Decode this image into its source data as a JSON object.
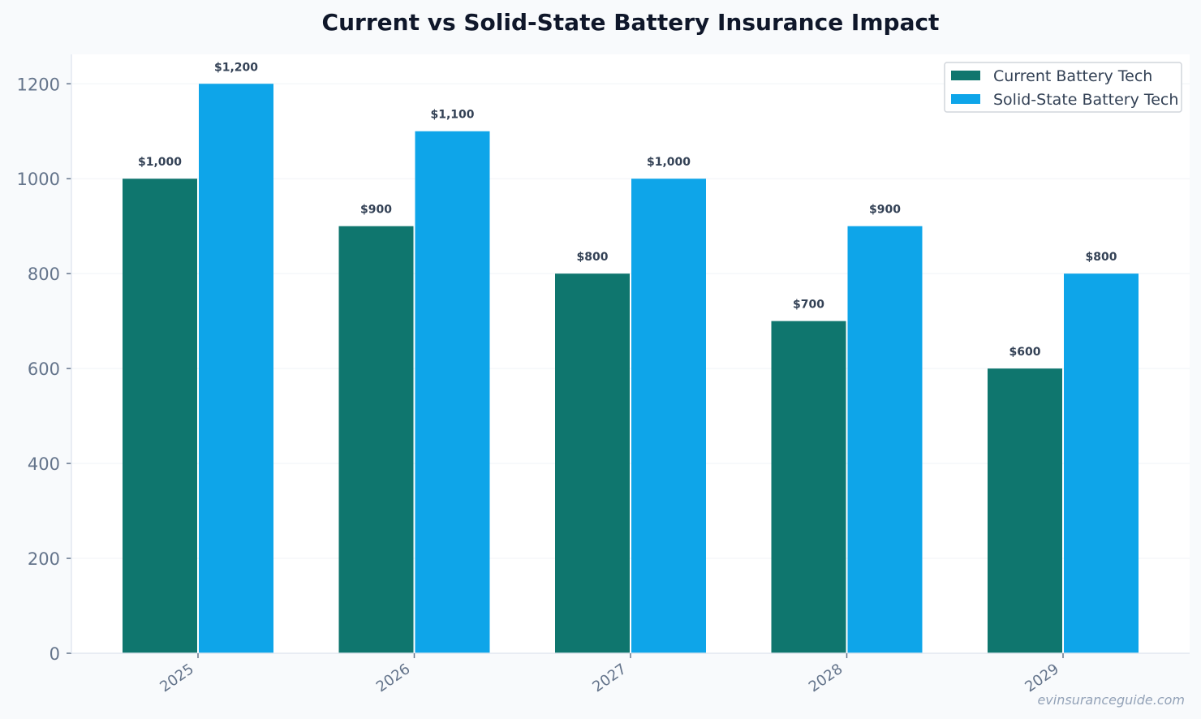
{
  "chart_data": {
    "type": "bar",
    "title": "Current vs Solid-State Battery Insurance Impact",
    "xlabel": "",
    "ylabel": "",
    "categories": [
      "2025",
      "2026",
      "2027",
      "2028",
      "2029"
    ],
    "series": [
      {
        "name": "Current Battery Tech",
        "color": "#0f766e",
        "values": [
          1000,
          900,
          800,
          700,
          600
        ],
        "labels": [
          "$1,000",
          "$900",
          "$800",
          "$700",
          "$600"
        ]
      },
      {
        "name": "Solid-State Battery Tech",
        "color": "#0ea5e9",
        "values": [
          1200,
          1100,
          1000,
          900,
          800
        ],
        "labels": [
          "$1,200",
          "$1,100",
          "$1,000",
          "$900",
          "$800"
        ]
      }
    ],
    "ylim": [
      0,
      1262
    ],
    "yticks": [
      0,
      200,
      400,
      600,
      800,
      1000,
      1200
    ],
    "grid": true,
    "legend": "top-right",
    "watermark": "evinsuranceguide.com"
  }
}
